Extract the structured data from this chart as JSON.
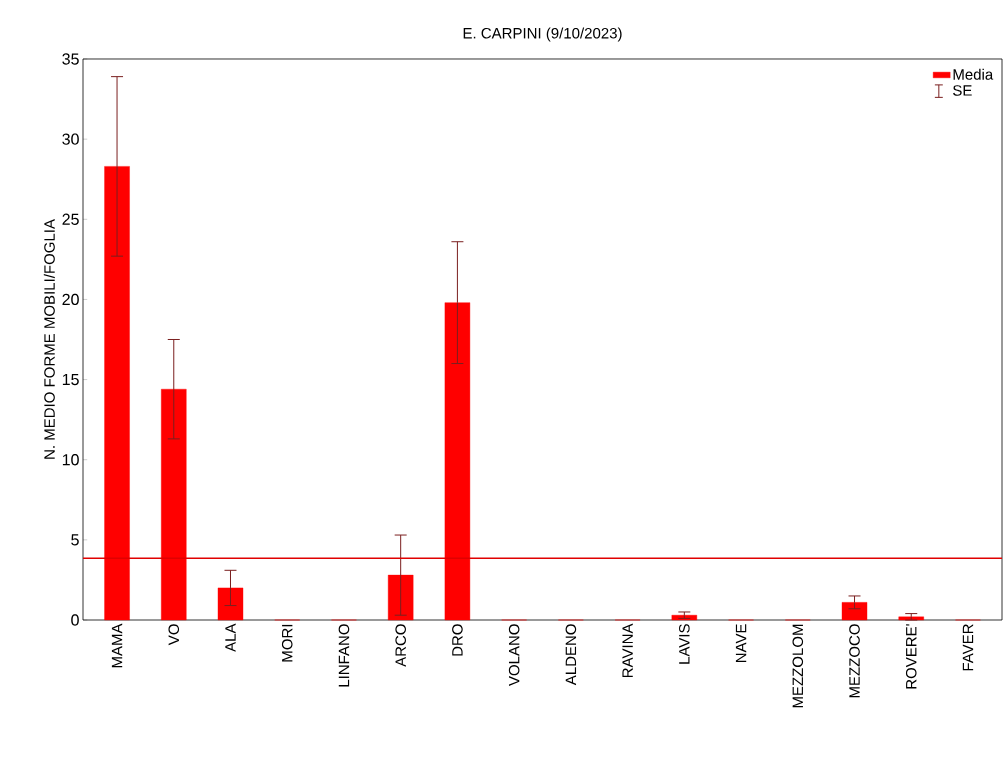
{
  "chart_data": {
    "type": "bar",
    "title": "E. CARPINI (9/10/2023)",
    "ylabel": "N. MEDIO FORME MOBILI/FOGLIA",
    "categories": [
      "MAMA",
      "VO",
      "ALA",
      "MORI",
      "LINFANO",
      "ARCO",
      "DRO",
      "VOLANO",
      "ALDENO",
      "RAVINA",
      "LAVIS",
      "NAVE",
      "MEZZOLOM",
      "MEZZOCO",
      "ROVERE'",
      "FAVER"
    ],
    "series": [
      {
        "name": "Media",
        "color": "#ff0000",
        "values": [
          28.3,
          14.4,
          2.0,
          0,
          0,
          2.8,
          19.8,
          0,
          0,
          0,
          0.3,
          0,
          0,
          1.1,
          0.2,
          0
        ],
        "errors": [
          5.6,
          3.1,
          1.1,
          null,
          null,
          2.5,
          3.8,
          null,
          null,
          null,
          0.2,
          null,
          null,
          0.4,
          0.2,
          null
        ]
      }
    ],
    "annotations": [
      "SE"
    ],
    "ylim": [
      0,
      35
    ],
    "yticks": [
      0,
      5,
      10,
      15,
      20,
      25,
      30,
      35
    ],
    "ref_lines": [
      {
        "axis": "y",
        "value": 3.85,
        "color": "#e00000"
      }
    ],
    "grid": false,
    "legend": "top right"
  }
}
